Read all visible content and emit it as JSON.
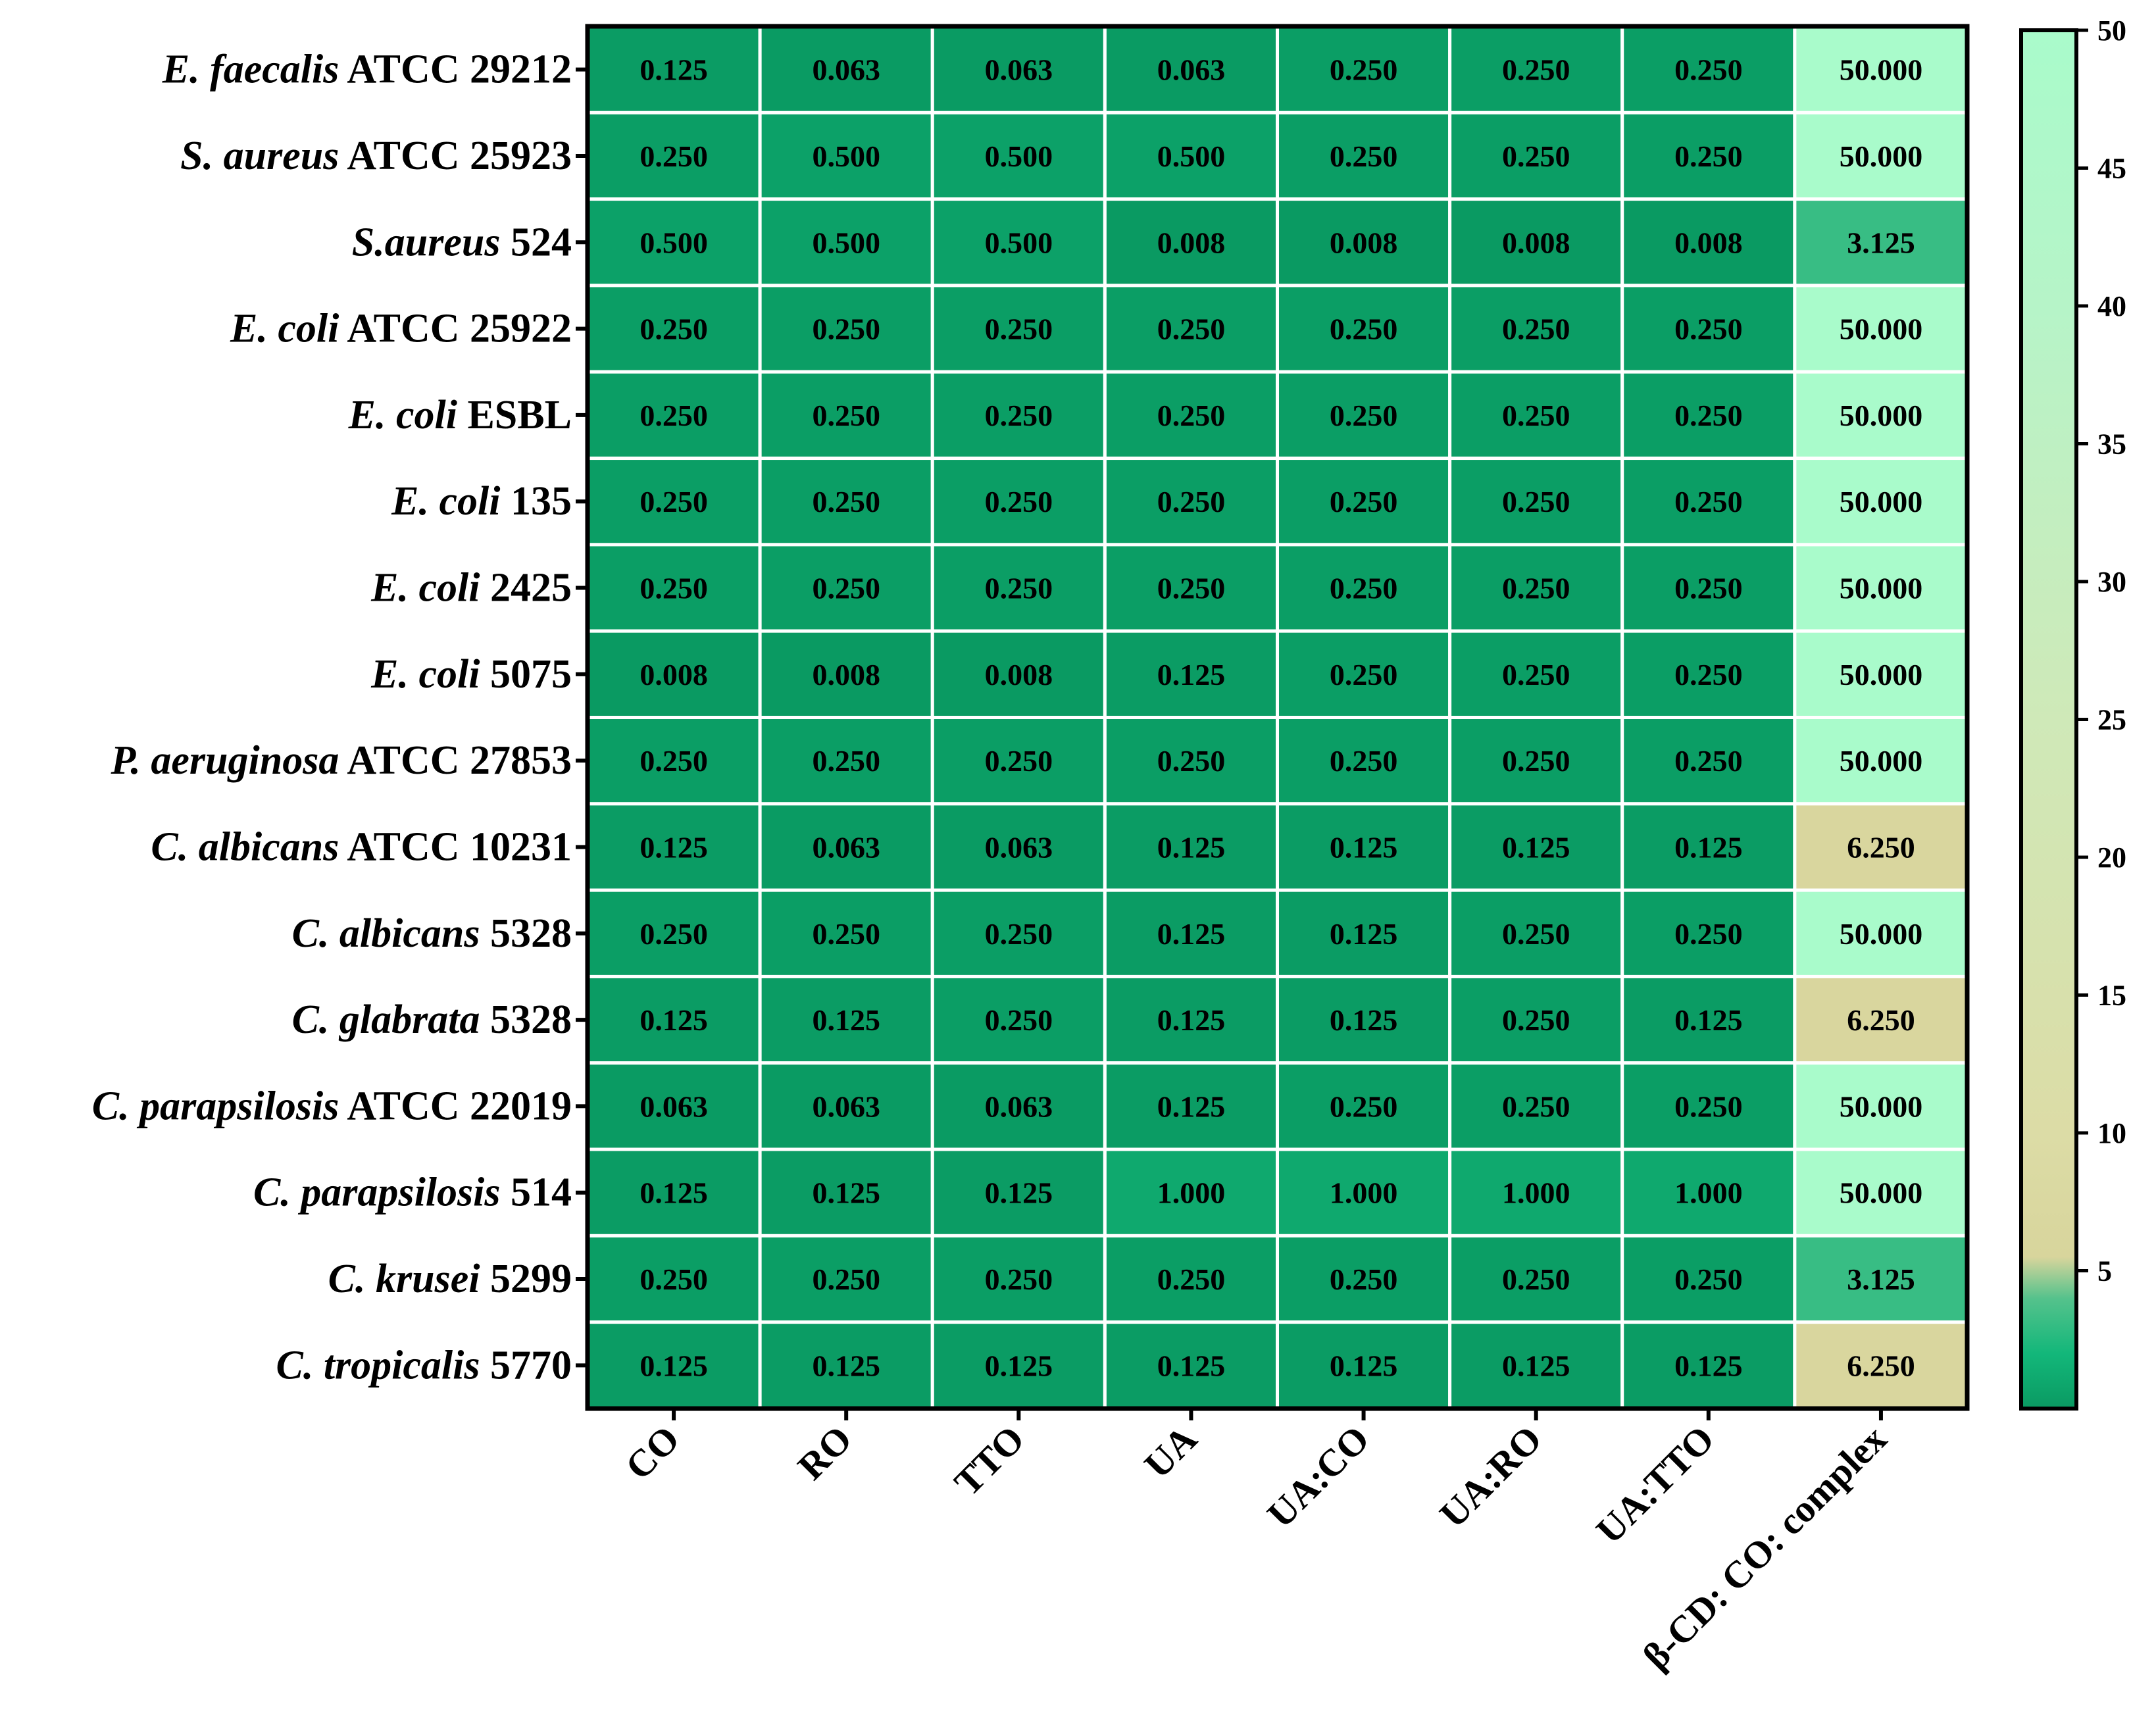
{
  "chart_data": {
    "type": "heatmap",
    "title": "",
    "xlabel": "",
    "ylabel": "",
    "rows": [
      {
        "italic": "E. faecalis",
        "rest": " ATCC 29212"
      },
      {
        "italic": "S. aureus",
        "rest": " ATCC 25923"
      },
      {
        "italic": "S.aureus",
        "rest": " 524"
      },
      {
        "italic": "E. coli",
        "rest": " ATCC 25922"
      },
      {
        "italic": "E. coli",
        "rest": " ESBL"
      },
      {
        "italic": "E. coli",
        "rest": " 135"
      },
      {
        "italic": "E. coli",
        "rest": " 2425"
      },
      {
        "italic": "E. coli",
        "rest": " 5075"
      },
      {
        "italic": "P. aeruginosa",
        "rest": " ATCC 27853"
      },
      {
        "italic": "C. albicans",
        "rest": " ATCC 10231"
      },
      {
        "italic": "C. albicans",
        "rest": " 5328"
      },
      {
        "italic": "C. glabrata",
        "rest": " 5328"
      },
      {
        "italic": "C. parapsilosis",
        "rest": " ATCC 22019"
      },
      {
        "italic": "C. parapsilosis",
        "rest": " 514"
      },
      {
        "italic": "C. krusei",
        "rest": " 5299"
      },
      {
        "italic": "C. tropicalis",
        "rest": " 5770"
      }
    ],
    "columns": [
      "CO",
      "RO",
      "TTO",
      "UA",
      "UA:CO",
      "UA:RO",
      "UA:TTO",
      "β-CD: CO: complex"
    ],
    "values": [
      [
        "0.125",
        "0.063",
        "0.063",
        "0.063",
        "0.250",
        "0.250",
        "0.250",
        "50.000"
      ],
      [
        "0.250",
        "0.500",
        "0.500",
        "0.500",
        "0.250",
        "0.250",
        "0.250",
        "50.000"
      ],
      [
        "0.500",
        "0.500",
        "0.500",
        "0.008",
        "0.008",
        "0.008",
        "0.008",
        "3.125"
      ],
      [
        "0.250",
        "0.250",
        "0.250",
        "0.250",
        "0.250",
        "0.250",
        "0.250",
        "50.000"
      ],
      [
        "0.250",
        "0.250",
        "0.250",
        "0.250",
        "0.250",
        "0.250",
        "0.250",
        "50.000"
      ],
      [
        "0.250",
        "0.250",
        "0.250",
        "0.250",
        "0.250",
        "0.250",
        "0.250",
        "50.000"
      ],
      [
        "0.250",
        "0.250",
        "0.250",
        "0.250",
        "0.250",
        "0.250",
        "0.250",
        "50.000"
      ],
      [
        "0.008",
        "0.008",
        "0.008",
        "0.125",
        "0.250",
        "0.250",
        "0.250",
        "50.000"
      ],
      [
        "0.250",
        "0.250",
        "0.250",
        "0.250",
        "0.250",
        "0.250",
        "0.250",
        "50.000"
      ],
      [
        "0.125",
        "0.063",
        "0.063",
        "0.125",
        "0.125",
        "0.125",
        "0.125",
        "6.250"
      ],
      [
        "0.250",
        "0.250",
        "0.250",
        "0.125",
        "0.125",
        "0.250",
        "0.250",
        "50.000"
      ],
      [
        "0.125",
        "0.125",
        "0.250",
        "0.125",
        "0.125",
        "0.250",
        "0.125",
        "6.250"
      ],
      [
        "0.063",
        "0.063",
        "0.063",
        "0.125",
        "0.250",
        "0.250",
        "0.250",
        "50.000"
      ],
      [
        "0.125",
        "0.125",
        "0.125",
        "1.000",
        "1.000",
        "1.000",
        "1.000",
        "50.000"
      ],
      [
        "0.250",
        "0.250",
        "0.250",
        "0.250",
        "0.250",
        "0.250",
        "0.250",
        "3.125"
      ],
      [
        "0.125",
        "0.125",
        "0.125",
        "0.125",
        "0.125",
        "0.125",
        "0.125",
        "6.250"
      ]
    ],
    "colorbar": {
      "range": [
        0,
        50
      ],
      "ticks": [
        "5",
        "10",
        "15",
        "20",
        "25",
        "30",
        "35",
        "40",
        "45",
        "50"
      ],
      "colors": [
        {
          "value": 0,
          "color": "#0a9a62"
        },
        {
          "value": 2,
          "color": "#13b77a"
        },
        {
          "value": 4,
          "color": "#55c28c"
        },
        {
          "value": 5.5,
          "color": "#d8d59c"
        },
        {
          "value": 10,
          "color": "#dcdca6"
        },
        {
          "value": 25,
          "color": "#cfe9b8"
        },
        {
          "value": 40,
          "color": "#b6f4c8"
        },
        {
          "value": 50,
          "color": "#a9fbcb"
        }
      ]
    },
    "grid": true,
    "legend": "right"
  }
}
